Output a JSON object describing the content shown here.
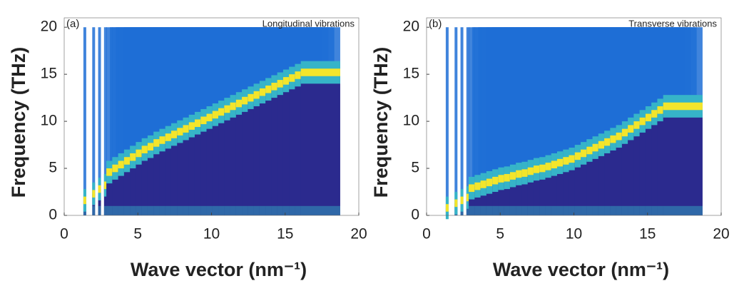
{
  "chart_data": [
    {
      "type": "heatmap",
      "label": "(a)",
      "note": "Longitudinal vibrations",
      "xlabel": "Wave vector (nm⁻¹)",
      "ylabel": "Frequency (THz)",
      "xlim": [
        0,
        20
      ],
      "ylim": [
        0,
        21
      ],
      "xticks": [
        0,
        5,
        10,
        15,
        20
      ],
      "yticks": [
        0,
        5,
        10,
        15,
        20
      ],
      "colors": [
        "#2b2a8e",
        "#1f6fd6",
        "#36b4c8",
        "#f3e52b"
      ],
      "x": [
        1.4,
        2.0,
        2.4,
        2.8,
        3.2,
        3.6,
        4.2,
        4.6,
        5.0,
        5.4,
        5.8,
        6.2,
        6.6,
        7.0,
        7.4,
        7.8,
        8.2,
        8.6,
        9.0,
        9.4,
        9.8,
        10.2,
        10.6,
        11.0,
        11.4,
        11.8,
        12.2,
        12.6,
        13.0,
        13.4,
        13.8,
        14.2,
        14.6,
        15.0,
        15.4,
        15.8,
        16.2,
        16.6,
        17.0,
        17.4
      ],
      "values": [
        1.6,
        2.3,
        2.8,
        3.2,
        3.6,
        4.0,
        4.6,
        5.0,
        5.4,
        5.8,
        6.2,
        6.6,
        7.0,
        7.3,
        7.7,
        8.0,
        8.3,
        8.6,
        8.9,
        9.2,
        9.5,
        9.8,
        10.1,
        10.4,
        10.7,
        11.0,
        11.3,
        11.6,
        11.9,
        12.2,
        12.5,
        12.8,
        13.1,
        13.4,
        13.7,
        14.0,
        14.3,
        14.6,
        14.9,
        15.2
      ]
    },
    {
      "type": "heatmap",
      "label": "(b)",
      "note": "Transverse vibrations",
      "xlabel": "Wave vector (nm⁻¹)",
      "ylabel": "Frequency (THz)",
      "xlim": [
        0,
        20
      ],
      "ylim": [
        0,
        21
      ],
      "xticks": [
        0,
        5,
        10,
        15,
        20
      ],
      "yticks": [
        0,
        5,
        10,
        15,
        20
      ],
      "colors": [
        "#2b2a8e",
        "#1f6fd6",
        "#36b4c8",
        "#f3e52b"
      ],
      "x": [
        1.4,
        2.0,
        2.4,
        2.8,
        3.2,
        3.6,
        4.2,
        4.6,
        5.0,
        5.4,
        5.8,
        6.2,
        6.6,
        7.0,
        7.4,
        7.8,
        8.2,
        8.6,
        9.0,
        9.4,
        9.8,
        10.2,
        10.6,
        11.0,
        11.4,
        11.8,
        12.2,
        12.6,
        13.0,
        13.4,
        13.8,
        14.2,
        14.6,
        15.0,
        15.4,
        15.8,
        16.2,
        16.6,
        17.0,
        17.4
      ],
      "values": [
        0.8,
        1.3,
        1.6,
        1.9,
        2.2,
        2.5,
        2.9,
        3.1,
        3.3,
        3.5,
        3.7,
        3.9,
        4.0,
        4.2,
        4.4,
        4.5,
        4.7,
        4.9,
        5.0,
        5.2,
        5.4,
        5.6,
        5.8,
        6.0,
        6.3,
        6.6,
        6.9,
        7.2,
        7.5,
        7.8,
        8.1,
        8.4,
        8.8,
        9.2,
        9.6,
        10.0,
        10.4,
        10.8,
        11.2,
        11.6
      ]
    }
  ]
}
